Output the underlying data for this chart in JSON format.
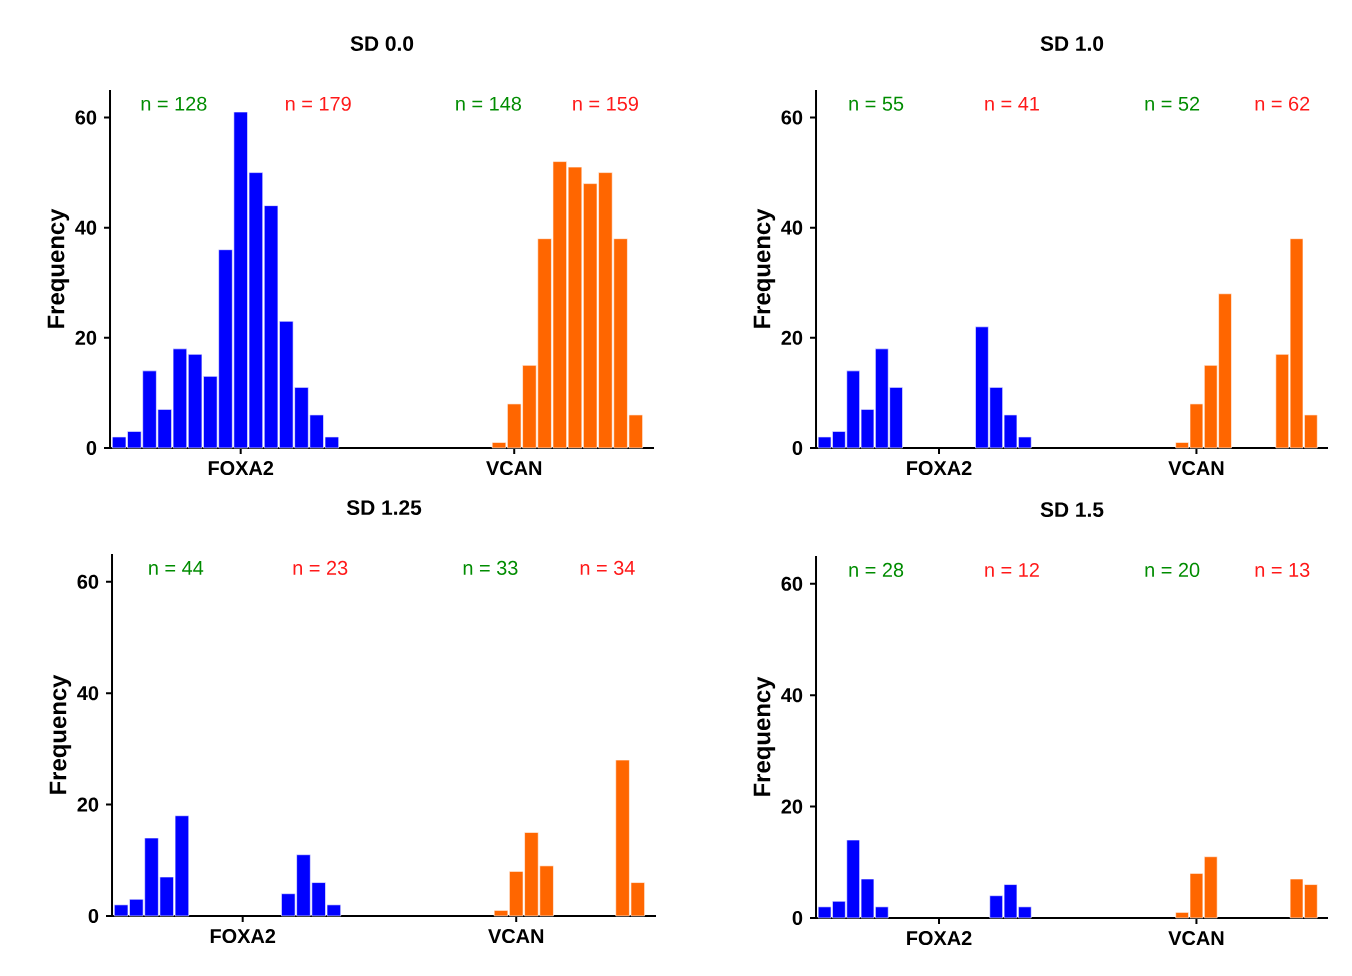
{
  "chart_data": [
    {
      "type": "bar",
      "title": "SD 0.0",
      "ylabel": "Frequency",
      "categories": [
        null,
        null,
        null,
        null,
        null,
        null,
        null,
        null,
        "FOXA2",
        null,
        null,
        null,
        null,
        null,
        null,
        null,
        null,
        null,
        null,
        null,
        null,
        null,
        null,
        null,
        null,
        null,
        "VCAN",
        null,
        null,
        null,
        null,
        null,
        null,
        null,
        null
      ],
      "series": [
        {
          "color": "#0000ff",
          "values": [
            2,
            3,
            14,
            7,
            18,
            17,
            13,
            36,
            61,
            50,
            44,
            23,
            11,
            6,
            2,
            null,
            null,
            null,
            null,
            null,
            null,
            null,
            null,
            null,
            null,
            null,
            null,
            null,
            null,
            null,
            null,
            null,
            null,
            null,
            null
          ]
        },
        {
          "color": "#ff6600",
          "values": [
            null,
            null,
            null,
            null,
            null,
            null,
            null,
            null,
            null,
            null,
            null,
            null,
            null,
            null,
            null,
            null,
            null,
            null,
            null,
            null,
            null,
            null,
            null,
            null,
            null,
            1,
            8,
            15,
            38,
            52,
            51,
            48,
            50,
            38,
            6
          ]
        }
      ],
      "ylim": [
        0,
        65
      ],
      "yticks": [
        0,
        20,
        40,
        60
      ],
      "annotations": [
        "n = 128",
        "n = 179",
        "n = 148",
        "n = 159"
      ]
    },
    {
      "type": "bar",
      "title": "SD 1.0",
      "ylabel": "Frequency",
      "categories": [
        null,
        null,
        null,
        null,
        null,
        null,
        null,
        null,
        "FOXA2",
        null,
        null,
        null,
        null,
        null,
        null,
        null,
        null,
        null,
        null,
        null,
        null,
        null,
        null,
        null,
        null,
        null,
        "VCAN",
        null,
        null,
        null,
        null,
        null,
        null,
        null,
        null
      ],
      "series": [
        {
          "color": "#0000ff",
          "values": [
            2,
            3,
            14,
            7,
            18,
            11,
            null,
            null,
            null,
            null,
            null,
            22,
            11,
            6,
            2,
            null,
            null,
            null,
            null,
            null,
            null,
            null,
            null,
            null,
            null,
            null,
            null,
            null,
            null,
            null,
            null,
            null,
            null,
            null,
            null
          ]
        },
        {
          "color": "#ff6600",
          "values": [
            null,
            null,
            null,
            null,
            null,
            null,
            null,
            null,
            null,
            null,
            null,
            null,
            null,
            null,
            null,
            null,
            null,
            null,
            null,
            null,
            null,
            null,
            null,
            null,
            null,
            1,
            8,
            15,
            28,
            null,
            null,
            null,
            17,
            38,
            6
          ]
        }
      ],
      "ylim": [
        0,
        65
      ],
      "yticks": [
        0,
        20,
        40,
        60
      ],
      "annotations": [
        "n = 55",
        "n = 41",
        "n = 52",
        "n = 62"
      ]
    },
    {
      "type": "bar",
      "title": "SD 1.25",
      "ylabel": "Frequency",
      "categories": [
        null,
        null,
        null,
        null,
        null,
        null,
        null,
        null,
        "FOXA2",
        null,
        null,
        null,
        null,
        null,
        null,
        null,
        null,
        null,
        null,
        null,
        null,
        null,
        null,
        null,
        null,
        null,
        "VCAN",
        null,
        null,
        null,
        null,
        null,
        null,
        null,
        null
      ],
      "series": [
        {
          "color": "#0000ff",
          "values": [
            2,
            3,
            14,
            7,
            18,
            null,
            null,
            null,
            null,
            null,
            null,
            4,
            11,
            6,
            2,
            null,
            null,
            null,
            null,
            null,
            null,
            null,
            null,
            null,
            null,
            null,
            null,
            null,
            null,
            null,
            null,
            null,
            null,
            null,
            null
          ]
        },
        {
          "color": "#ff6600",
          "values": [
            null,
            null,
            null,
            null,
            null,
            null,
            null,
            null,
            null,
            null,
            null,
            null,
            null,
            null,
            null,
            null,
            null,
            null,
            null,
            null,
            null,
            null,
            null,
            null,
            null,
            1,
            8,
            15,
            9,
            null,
            null,
            null,
            null,
            28,
            6
          ]
        }
      ],
      "ylim": [
        0,
        65
      ],
      "yticks": [
        0,
        20,
        40,
        60
      ],
      "annotations": [
        "n = 44",
        "n = 23",
        "n = 33",
        "n = 34"
      ]
    },
    {
      "type": "bar",
      "title": "SD 1.5",
      "ylabel": "Frequency",
      "categories": [
        null,
        null,
        null,
        null,
        null,
        null,
        null,
        null,
        "FOXA2",
        null,
        null,
        null,
        null,
        null,
        null,
        null,
        null,
        null,
        null,
        null,
        null,
        null,
        null,
        null,
        null,
        null,
        "VCAN",
        null,
        null,
        null,
        null,
        null,
        null,
        null,
        null
      ],
      "series": [
        {
          "color": "#0000ff",
          "values": [
            2,
            3,
            14,
            7,
            2,
            null,
            null,
            null,
            null,
            null,
            null,
            null,
            4,
            6,
            2,
            null,
            null,
            null,
            null,
            null,
            null,
            null,
            null,
            null,
            null,
            null,
            null,
            null,
            null,
            null,
            null,
            null,
            null,
            null,
            null
          ]
        },
        {
          "color": "#ff6600",
          "values": [
            null,
            null,
            null,
            null,
            null,
            null,
            null,
            null,
            null,
            null,
            null,
            null,
            null,
            null,
            null,
            null,
            null,
            null,
            null,
            null,
            null,
            null,
            null,
            null,
            null,
            1,
            8,
            11,
            null,
            null,
            null,
            null,
            null,
            7,
            6
          ]
        }
      ],
      "ylim": [
        0,
        65
      ],
      "yticks": [
        0,
        20,
        40,
        60
      ],
      "annotations": [
        "n = 28",
        "n = 12",
        "n = 20",
        "n = 13"
      ]
    }
  ]
}
